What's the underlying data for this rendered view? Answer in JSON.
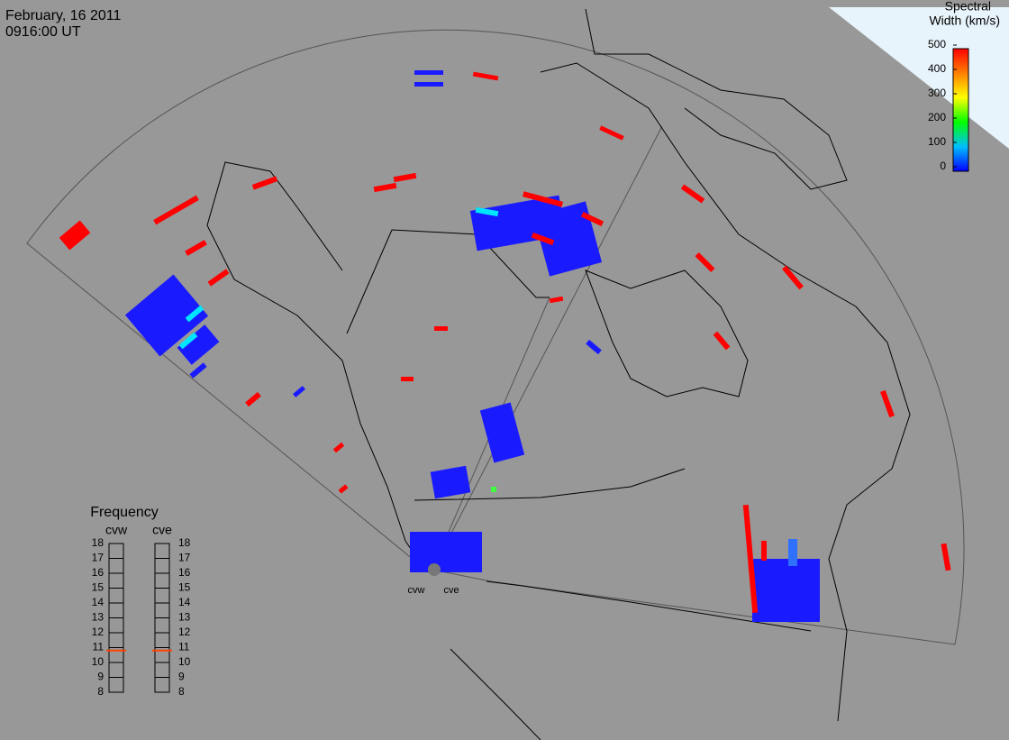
{
  "header": {
    "date": "February, 16 2011",
    "time": "0916:00 UT"
  },
  "colorbar": {
    "title": [
      "Spectral",
      "Width (km/s)"
    ],
    "range": [
      0,
      500
    ],
    "ticks": [
      0,
      100,
      200,
      300,
      400,
      500
    ]
  },
  "frequency": {
    "title": "Frequency",
    "range": [
      8,
      18
    ],
    "ticks": [
      8,
      9,
      10,
      11,
      12,
      13,
      14,
      15,
      16,
      17,
      18
    ],
    "radars": [
      {
        "name": "cvw",
        "value": 10.8
      },
      {
        "name": "cve",
        "value": 10.8
      }
    ]
  },
  "radar_labels": [
    "cvw",
    "cve"
  ]
}
